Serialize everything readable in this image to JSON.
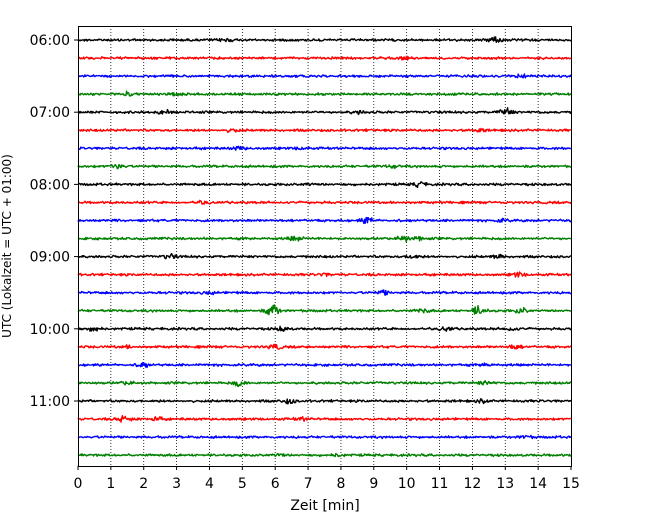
{
  "chart_data": {
    "type": "line",
    "title": "",
    "xlabel": "Zeit  [min]",
    "ylabel": "UTC (Lokalzeit = UTC + 01:00)",
    "xlim": [
      0,
      15
    ],
    "x_ticks": [
      "0",
      "1",
      "2",
      "3",
      "4",
      "5",
      "6",
      "7",
      "8",
      "9",
      "10",
      "11",
      "12",
      "13",
      "14",
      "15"
    ],
    "y_ticks": [
      "06:00",
      "07:00",
      "08:00",
      "09:00",
      "10:00",
      "11:00"
    ],
    "grid": "vertical dotted",
    "trace_colors": [
      "#000000",
      "#ff0000",
      "#0000ff",
      "#008000"
    ],
    "traces": [
      {
        "start": "06:00",
        "events": [
          [
            12.7,
            1.6
          ],
          [
            4.5,
            0.7
          ]
        ]
      },
      {
        "start": "06:15",
        "events": [
          [
            9.9,
            0.6
          ]
        ]
      },
      {
        "start": "06:30",
        "events": [
          [
            13.5,
            0.6
          ]
        ]
      },
      {
        "start": "06:45",
        "events": [
          [
            1.5,
            0.8
          ],
          [
            3.0,
            0.6
          ]
        ]
      },
      {
        "start": "07:00",
        "events": [
          [
            13.0,
            1.8
          ],
          [
            2.7,
            0.9
          ],
          [
            8.5,
            0.7
          ]
        ]
      },
      {
        "start": "07:15",
        "events": [
          [
            4.7,
            0.6
          ],
          [
            12.2,
            0.6
          ]
        ]
      },
      {
        "start": "07:30",
        "events": [
          [
            4.9,
            0.7
          ],
          [
            6.8,
            0.6
          ]
        ]
      },
      {
        "start": "07:45",
        "events": [
          [
            1.2,
            0.9
          ],
          [
            9.6,
            0.6
          ]
        ]
      },
      {
        "start": "08:00",
        "events": [
          [
            10.4,
            1.0
          ],
          [
            7.0,
            0.5
          ]
        ]
      },
      {
        "start": "08:15",
        "events": [
          [
            3.8,
            0.5
          ]
        ]
      },
      {
        "start": "08:30",
        "events": [
          [
            8.8,
            1.2
          ],
          [
            12.9,
            0.5
          ]
        ]
      },
      {
        "start": "08:45",
        "events": [
          [
            6.6,
            1.0
          ],
          [
            9.9,
            1.3
          ],
          [
            10.4,
            0.7
          ]
        ]
      },
      {
        "start": "09:00",
        "events": [
          [
            2.8,
            1.0
          ],
          [
            10.2,
            0.8
          ],
          [
            12.8,
            0.7
          ]
        ]
      },
      {
        "start": "09:15",
        "events": [
          [
            13.4,
            0.9
          ],
          [
            7.5,
            0.5
          ]
        ]
      },
      {
        "start": "09:30",
        "events": [
          [
            9.3,
            1.0
          ],
          [
            4.0,
            0.5
          ]
        ]
      },
      {
        "start": "09:45",
        "events": [
          [
            5.9,
            2.8
          ],
          [
            12.2,
            2.0
          ],
          [
            13.5,
            1.3
          ],
          [
            10.5,
            0.8
          ]
        ]
      },
      {
        "start": "10:00",
        "events": [
          [
            0.5,
            0.9
          ],
          [
            6.2,
            0.8
          ],
          [
            11.2,
            0.8
          ],
          [
            13.2,
            0.7
          ]
        ]
      },
      {
        "start": "10:15",
        "events": [
          [
            6.0,
            1.1
          ],
          [
            13.3,
            0.9
          ],
          [
            1.5,
            0.5
          ]
        ]
      },
      {
        "start": "10:30",
        "events": [
          [
            2.0,
            0.9
          ],
          [
            12.4,
            0.6
          ]
        ]
      },
      {
        "start": "10:45",
        "events": [
          [
            4.9,
            1.4
          ],
          [
            12.4,
            0.8
          ],
          [
            1.5,
            0.6
          ]
        ]
      },
      {
        "start": "11:00",
        "events": [
          [
            6.4,
            1.1
          ],
          [
            12.3,
            0.6
          ]
        ]
      },
      {
        "start": "11:15",
        "events": [
          [
            1.4,
            1.5
          ],
          [
            2.4,
            0.8
          ],
          [
            6.8,
            0.6
          ]
        ]
      },
      {
        "start": "11:30",
        "events": [
          [
            13.6,
            0.5
          ]
        ]
      },
      {
        "start": "11:45",
        "events": [
          [
            6.1,
            0.7
          ],
          [
            7.9,
            0.5
          ]
        ]
      }
    ]
  }
}
